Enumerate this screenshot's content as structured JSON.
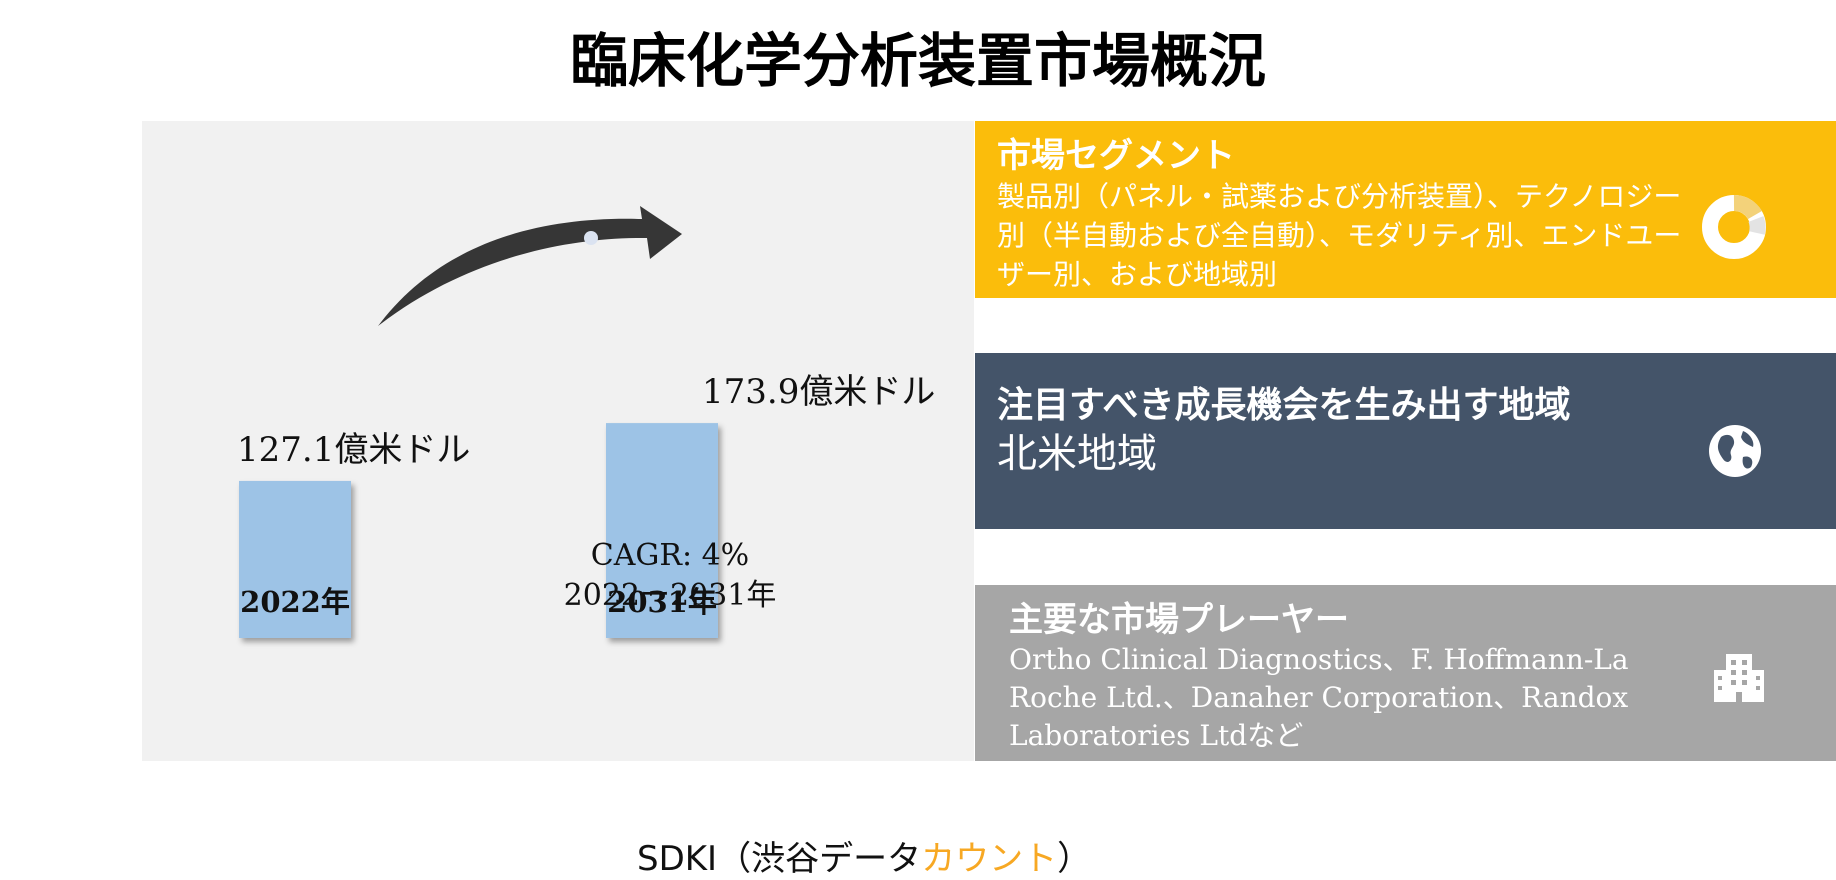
{
  "title": "臨床化学分析装置市場概況",
  "chart_data": {
    "type": "bar",
    "categories": [
      "2022年",
      "2031年"
    ],
    "values": [
      127.1,
      173.9
    ],
    "value_labels": [
      "127.1億米ドル",
      "173.9億米ドル"
    ],
    "cagr": "CAGR: 4%",
    "cagr_period": "2022ー2031年",
    "bar_color": "#9dc3e6"
  },
  "credit": {
    "prefix": "SDKI（渋谷データ",
    "accent": "カウント",
    "suffix": "）"
  },
  "segments": {
    "heading": "市場セグメント",
    "body": "製品別（パネル・試薬および分析装置）、テクノロジー別（半自動および全自動）、モダリティ別、エンドユーザー別、および地域別",
    "color": "#fbbd0b",
    "icon": "donut-chart-icon"
  },
  "region": {
    "heading": "注目すべき成長機会を生み出す地域",
    "body": "北米地域",
    "color": "#445469",
    "icon": "globe-icon"
  },
  "players": {
    "heading": "主要な市場プレーヤー",
    "body": "Ortho Clinical Diagnostics、F. Hoffmann-La Roche Ltd.、Danaher Corporation、Randox Laboratories Ltdなど",
    "color": "#a6a6a6",
    "icon": "building-icon"
  }
}
